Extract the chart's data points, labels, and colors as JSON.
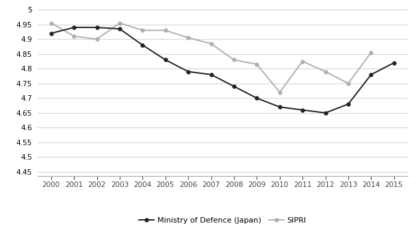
{
  "years": [
    2000,
    2001,
    2002,
    2003,
    2004,
    2005,
    2006,
    2007,
    2008,
    2009,
    2010,
    2011,
    2012,
    2013,
    2014,
    2015
  ],
  "mod_japan": [
    4.92,
    4.94,
    4.94,
    4.935,
    4.88,
    4.83,
    4.79,
    4.78,
    4.74,
    4.7,
    4.67,
    4.66,
    4.65,
    4.68,
    4.78,
    4.82
  ],
  "sipri": [
    4.955,
    4.91,
    4.9,
    4.955,
    4.93,
    4.93,
    4.905,
    4.885,
    4.83,
    4.815,
    4.72,
    4.825,
    4.79,
    4.75,
    4.855,
    null
  ],
  "mod_color": "#222222",
  "sipri_color": "#b0b0b0",
  "mod_label": "Ministry of Defence (Japan)",
  "sipri_label": "SIPRI",
  "ylim": [
    4.435,
    5.01
  ],
  "yticks": [
    4.45,
    4.5,
    4.55,
    4.6,
    4.65,
    4.7,
    4.75,
    4.8,
    4.85,
    4.9,
    4.95,
    5.0
  ],
  "background_color": "#ffffff",
  "grid_color": "#d8d8d8",
  "marker": "o",
  "marker_size": 3.5,
  "line_width": 1.4
}
